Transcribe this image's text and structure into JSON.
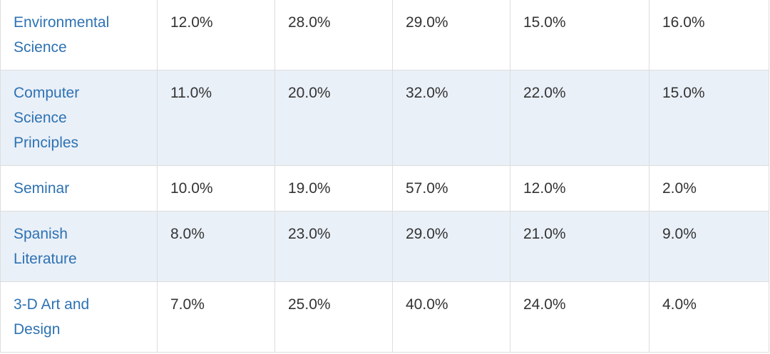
{
  "table": {
    "rows": [
      {
        "label": "Environmental Science",
        "cells": [
          "12.0%",
          "28.0%",
          "29.0%",
          "15.0%",
          "16.0%"
        ]
      },
      {
        "label": "Computer Science Principles",
        "cells": [
          "11.0%",
          "20.0%",
          "32.0%",
          "22.0%",
          "15.0%"
        ]
      },
      {
        "label": "Seminar",
        "cells": [
          "10.0%",
          "19.0%",
          "57.0%",
          "12.0%",
          "2.0%"
        ]
      },
      {
        "label": "Spanish Literature",
        "cells": [
          "8.0%",
          "23.0%",
          "29.0%",
          "21.0%",
          "9.0%"
        ]
      },
      {
        "label": "3-D Art and Design",
        "cells": [
          "7.0%",
          "25.0%",
          "40.0%",
          "24.0%",
          "4.0%"
        ]
      }
    ]
  }
}
